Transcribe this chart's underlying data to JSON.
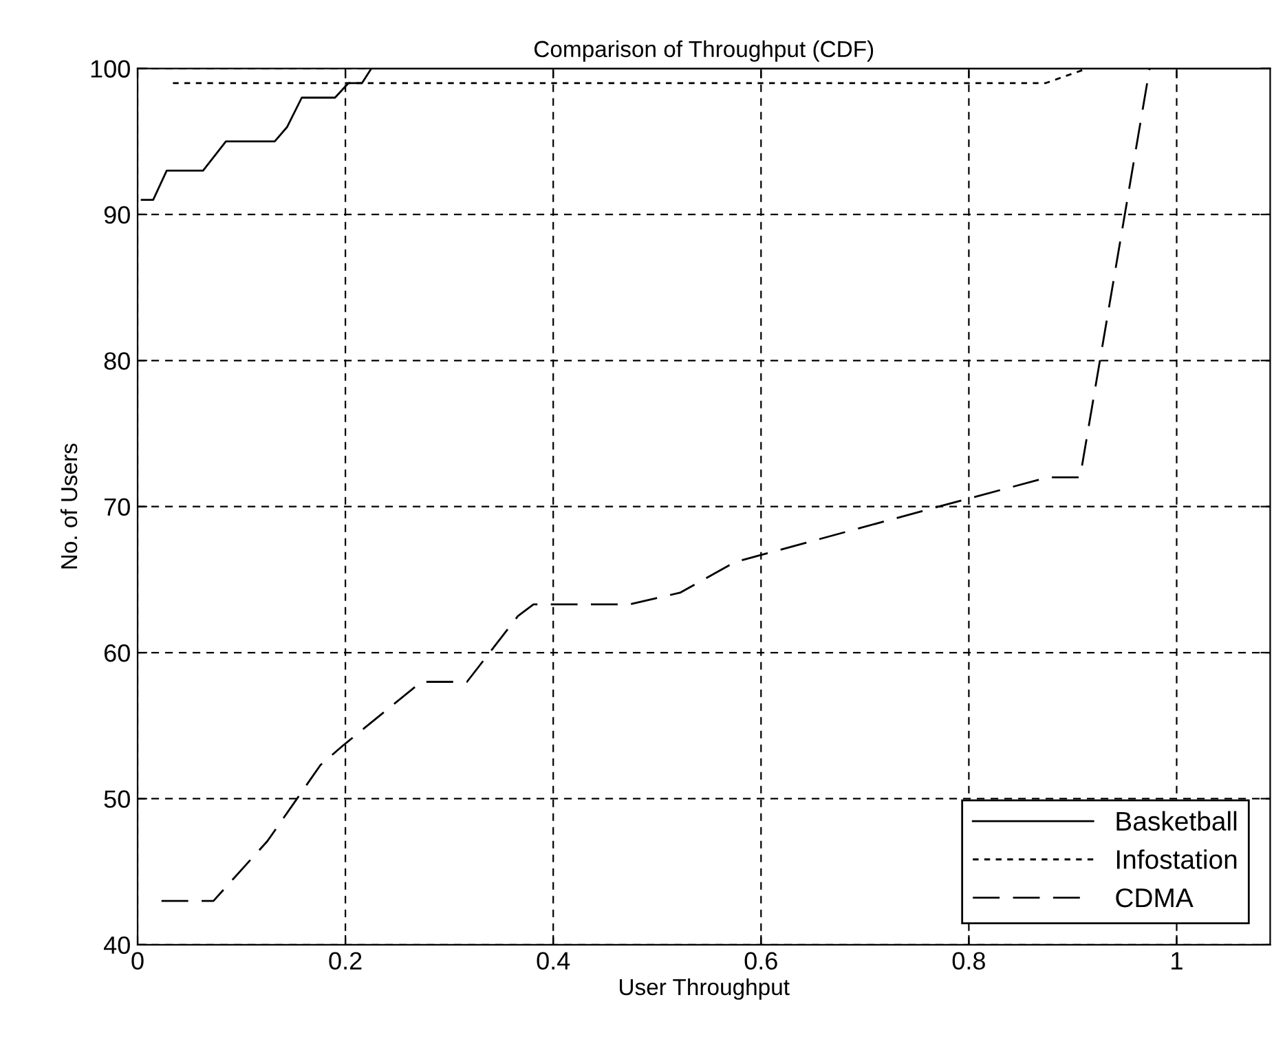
{
  "chart_data": {
    "type": "line",
    "title": "Comparison of Throughput (CDF)",
    "xlabel": "User Throughput",
    "ylabel": "No. of Users",
    "xlim": [
      0,
      1.09
    ],
    "ylim": [
      40,
      100
    ],
    "xticks": [
      0,
      0.2,
      0.4,
      0.6,
      0.8,
      1
    ],
    "yticks": [
      40,
      50,
      60,
      70,
      80,
      90,
      100
    ],
    "grid": true,
    "legend": "bottom right",
    "series": [
      {
        "name": "Basketball",
        "color": "#000000",
        "line_style": "solid",
        "x": [
          0.004,
          0.015,
          0.028,
          0.063,
          0.085,
          0.132,
          0.144,
          0.158,
          0.19,
          0.203,
          0.216,
          0.225,
          1.09
        ],
        "values": [
          91,
          91,
          93,
          93,
          95,
          95,
          96,
          98,
          98,
          99,
          99,
          100,
          100
        ]
      },
      {
        "name": "Infostation",
        "color": "#000000",
        "line_style": "dotted",
        "x": [
          0.034,
          0.874,
          0.914,
          1.09
        ],
        "values": [
          99,
          99,
          100,
          100
        ]
      },
      {
        "name": "CDMA",
        "color": "#000000",
        "line_style": "dashed",
        "x": [
          0.023,
          0.073,
          0.125,
          0.176,
          0.197,
          0.273,
          0.317,
          0.366,
          0.381,
          0.473,
          0.522,
          0.575,
          0.771,
          0.876,
          0.907,
          0.974,
          1.09
        ],
        "values": [
          43,
          43,
          47.1,
          52.3,
          53.6,
          58,
          58,
          62.5,
          63.3,
          63.3,
          64.1,
          66.2,
          70,
          72,
          72,
          100,
          100
        ]
      }
    ]
  }
}
